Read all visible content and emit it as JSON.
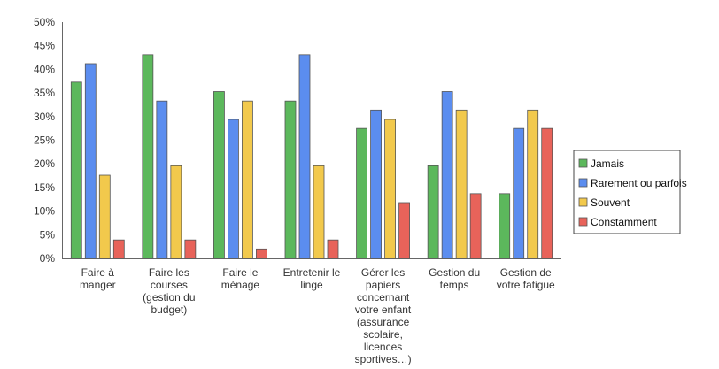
{
  "chart_data": {
    "type": "bar",
    "title": "",
    "xlabel": "",
    "ylabel": "",
    "ylim": [
      0,
      50
    ],
    "y_ticks": [
      "0%",
      "5%",
      "10%",
      "15%",
      "20%",
      "25%",
      "30%",
      "35%",
      "40%",
      "45%",
      "50%"
    ],
    "grid": false,
    "legend_position": "right",
    "categories": [
      [
        "Faire à",
        "manger"
      ],
      [
        "Faire les",
        "courses",
        "(gestion du",
        "budget)"
      ],
      [
        "Faire le",
        "ménage"
      ],
      [
        "Entretenir le",
        "linge"
      ],
      [
        "Gérer les",
        "papiers",
        "concernant",
        "votre enfant",
        "(assurance",
        "scolaire,",
        "licences",
        "sportives…)"
      ],
      [
        "Gestion du",
        "temps"
      ],
      [
        "Gestion de",
        "votre fatigue"
      ]
    ],
    "series": [
      {
        "name": "Jamais",
        "color": "#5cb85c",
        "values": [
          37.3,
          43.1,
          35.3,
          33.3,
          27.5,
          19.6,
          13.7
        ]
      },
      {
        "name": "Rarement ou parfois",
        "color": "#5b8def",
        "values": [
          41.2,
          33.3,
          29.4,
          43.1,
          31.4,
          35.3,
          27.5
        ]
      },
      {
        "name": "Souvent",
        "color": "#f2c94c",
        "values": [
          17.6,
          19.6,
          33.3,
          19.6,
          29.4,
          31.4,
          31.4
        ]
      },
      {
        "name": "Constamment",
        "color": "#e8635a",
        "values": [
          3.9,
          3.9,
          2.0,
          3.9,
          11.8,
          13.7,
          27.5
        ]
      }
    ]
  }
}
